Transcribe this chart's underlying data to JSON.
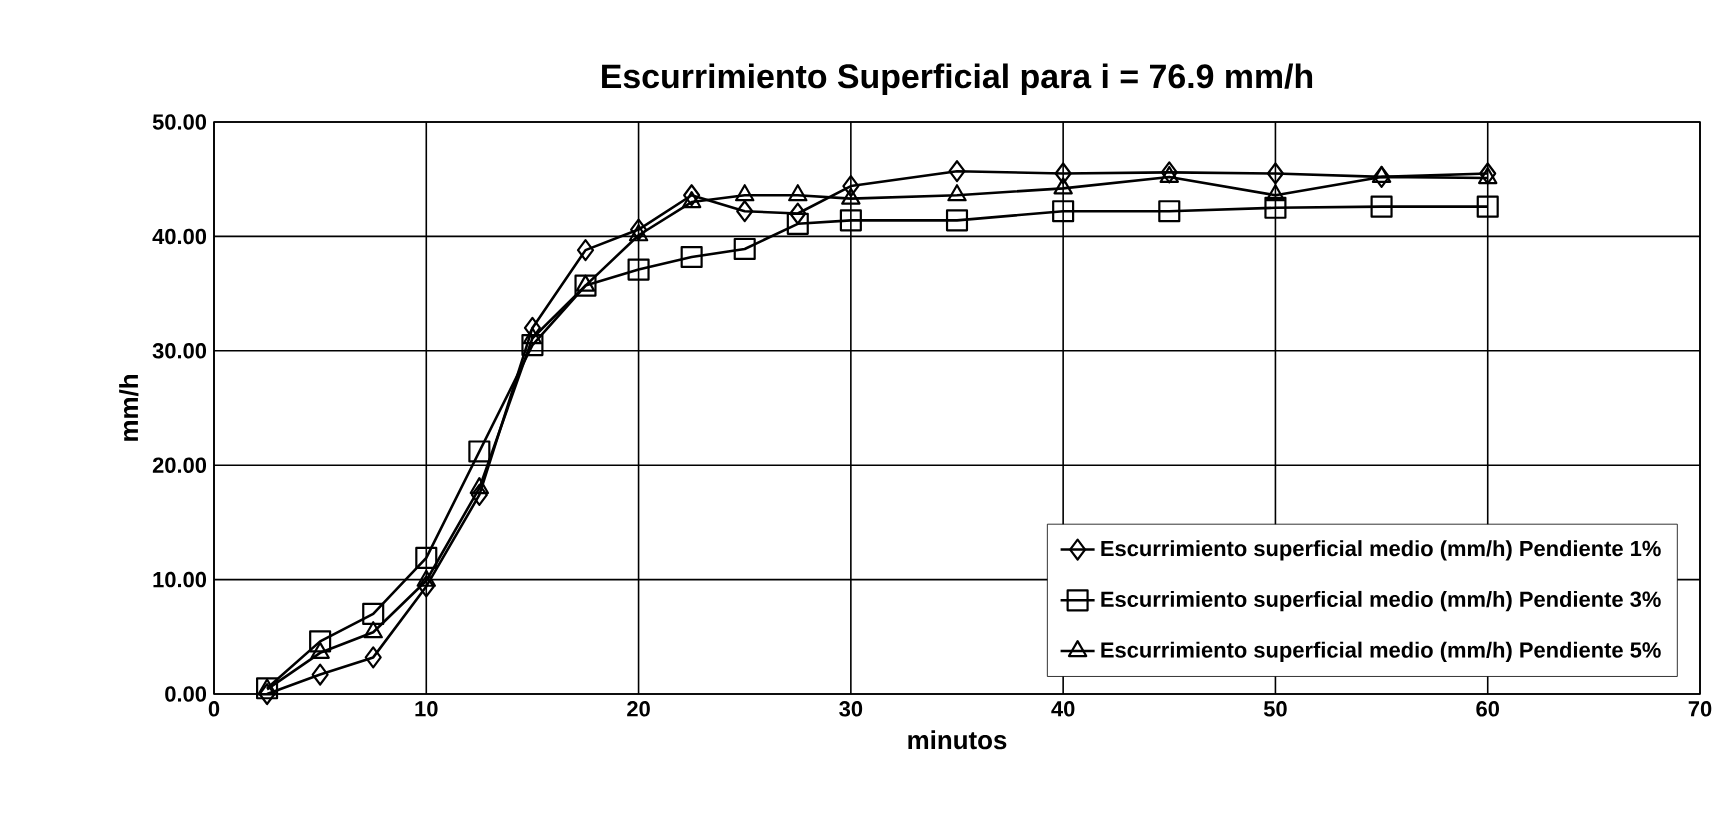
{
  "chart_data": {
    "type": "line",
    "title": "Escurrimiento Superficial    para    i = 76.9 mm/h",
    "xlabel": "minutos",
    "ylabel": "mm/h",
    "x": [
      2.5,
      5,
      7.5,
      10,
      12.5,
      15,
      17.5,
      20,
      22.5,
      25,
      27.5,
      30,
      35,
      40,
      45,
      50,
      55,
      60
    ],
    "series": [
      {
        "name": "Escurrimiento superficial medio (mm/h) Pendiente 1%",
        "color": "#000000",
        "marker": "diamond",
        "values": [
          0.0,
          1.7,
          3.2,
          9.4,
          17.4,
          32.0,
          38.8,
          40.6,
          43.6,
          42.2,
          42.0,
          44.4,
          45.7,
          45.5,
          45.6,
          45.5,
          45.2,
          45.5
        ]
      },
      {
        "name": "Escurrimiento superficial medio (mm/h) Pendiente 3%",
        "color": "#000000",
        "marker": "square",
        "values": [
          0.5,
          4.6,
          7.0,
          11.9,
          21.2,
          30.5,
          35.7,
          37.1,
          38.2,
          38.9,
          41.1,
          41.4,
          41.4,
          42.2,
          42.2,
          42.5,
          42.6,
          42.6
        ]
      },
      {
        "name": "Escurrimiento superficial medio (mm/h) Pendiente 5%",
        "color": "#000000",
        "marker": "triangle",
        "values": [
          0.4,
          3.6,
          5.4,
          9.9,
          18.0,
          31.1,
          35.7,
          40.1,
          43.0,
          43.6,
          43.6,
          43.3,
          43.6,
          44.2,
          45.2,
          43.6,
          45.2,
          45.1
        ]
      }
    ],
    "xlim": [
      0,
      70
    ],
    "xticks": [
      0,
      10,
      20,
      30,
      40,
      50,
      60,
      70
    ],
    "ylim": [
      0,
      50
    ],
    "yticks": [
      {
        "value": 0,
        "label": "0.00"
      },
      {
        "value": 10,
        "label": "10.00"
      },
      {
        "value": 20,
        "label": "20.00"
      },
      {
        "value": 30,
        "label": "30.00"
      },
      {
        "value": 40,
        "label": "40.00"
      },
      {
        "value": 50,
        "label": "50.00"
      }
    ],
    "grid": true,
    "legend": "bottom right",
    "line_style": "solid"
  }
}
